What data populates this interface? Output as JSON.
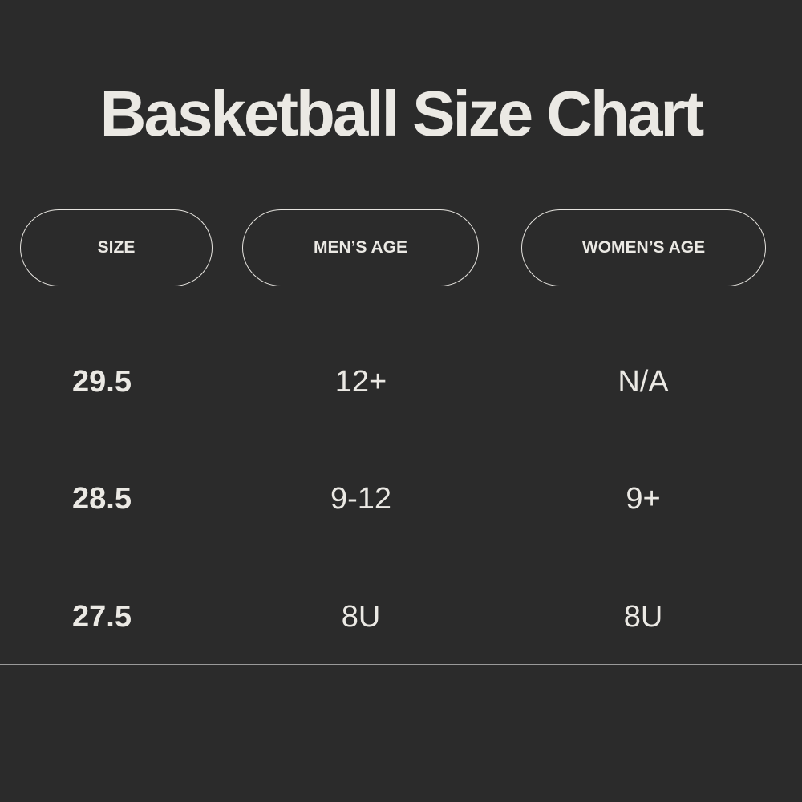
{
  "header": {
    "title": "Basketball Size Chart"
  },
  "table": {
    "columns": [
      "SIZE",
      "MEN’S AGE",
      "WOMEN’S AGE"
    ],
    "rows": [
      [
        "29.5",
        "12+",
        "N/A"
      ],
      [
        "28.5",
        "9-12",
        "9+"
      ],
      [
        "27.5",
        "8U",
        "8U"
      ]
    ]
  }
}
